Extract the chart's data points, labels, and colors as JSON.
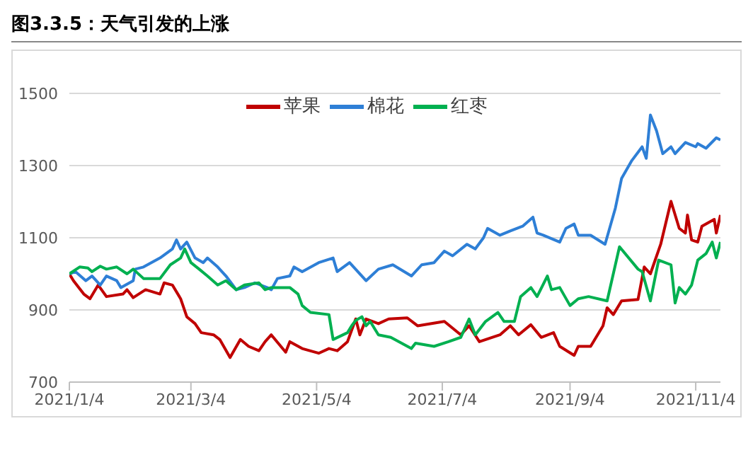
{
  "chart_data": {
    "type": "line",
    "title": "图3.3.5：天气引发的上涨",
    "legend": "top",
    "grid": "y",
    "ylim": [
      700,
      1500
    ],
    "yticks": [
      700,
      900,
      1100,
      1300,
      1500
    ],
    "xlim": [
      "2021-01-04",
      "2021-11-16"
    ],
    "xticks": [
      {
        "value": "2021-01-04",
        "label": "2021/1/4"
      },
      {
        "value": "2021-03-04",
        "label": "2021/3/4"
      },
      {
        "value": "2021-05-04",
        "label": "2021/5/4"
      },
      {
        "value": "2021-07-04",
        "label": "2021/7/4"
      },
      {
        "value": "2021-09-04",
        "label": "2021/9/4"
      },
      {
        "value": "2021-11-04",
        "label": "2021/11/4"
      }
    ],
    "series": [
      {
        "name": "苹果",
        "color": "#c00000",
        "x": [
          "2021-01-04",
          "2021-01-06",
          "2021-01-11",
          "2021-01-14",
          "2021-01-18",
          "2021-01-22",
          "2021-01-30",
          "2021-02-01",
          "2021-02-04",
          "2021-02-10",
          "2021-02-17",
          "2021-02-19",
          "2021-02-23",
          "2021-02-27",
          "2021-03-02",
          "2021-03-06",
          "2021-03-09",
          "2021-03-15",
          "2021-03-18",
          "2021-03-23",
          "2021-03-28",
          "2021-04-01",
          "2021-04-06",
          "2021-04-09",
          "2021-04-12",
          "2021-04-19",
          "2021-04-21",
          "2021-04-27",
          "2021-05-05",
          "2021-05-10",
          "2021-05-14",
          "2021-05-19",
          "2021-05-23",
          "2021-05-25",
          "2021-05-28",
          "2021-06-03",
          "2021-06-08",
          "2021-06-17",
          "2021-06-22",
          "2021-07-05",
          "2021-07-13",
          "2021-07-17",
          "2021-07-22",
          "2021-08-01",
          "2021-08-06",
          "2021-08-10",
          "2021-08-16",
          "2021-08-21",
          "2021-08-27",
          "2021-08-30",
          "2021-09-06",
          "2021-09-08",
          "2021-09-14",
          "2021-09-20",
          "2021-09-22",
          "2021-09-25",
          "2021-09-29",
          "2021-10-07",
          "2021-10-10",
          "2021-10-13",
          "2021-10-18",
          "2021-10-23",
          "2021-10-27",
          "2021-10-30",
          "2021-10-31",
          "2021-11-02",
          "2021-11-05",
          "2021-11-07",
          "2021-11-13",
          "2021-11-14",
          "2021-11-16"
        ],
        "values": [
          1000,
          981,
          944,
          931,
          969,
          937,
          944,
          956,
          934,
          956,
          944,
          975,
          969,
          931,
          881,
          862,
          837,
          831,
          818,
          768,
          818,
          799,
          787,
          812,
          831,
          783,
          812,
          793,
          780,
          793,
          787,
          812,
          875,
          831,
          875,
          862,
          875,
          878,
          856,
          868,
          831,
          856,
          812,
          831,
          856,
          831,
          859,
          824,
          837,
          799,
          774,
          799,
          799,
          856,
          906,
          887,
          925,
          929,
          1019,
          1000,
          1082,
          1201,
          1126,
          1113,
          1163,
          1094,
          1088,
          1132,
          1151,
          1113,
          1163
        ]
      },
      {
        "name": "棉花",
        "color": "#2e7fd6",
        "x": [
          "2021-01-04",
          "2021-01-07",
          "2021-01-12",
          "2021-01-15",
          "2021-01-19",
          "2021-01-22",
          "2021-01-27",
          "2021-01-29",
          "2021-02-04",
          "2021-02-05",
          "2021-02-09",
          "2021-02-17",
          "2021-02-23",
          "2021-02-25",
          "2021-02-27",
          "2021-03-02",
          "2021-03-06",
          "2021-03-10",
          "2021-03-12",
          "2021-03-17",
          "2021-03-21",
          "2021-03-26",
          "2021-03-30",
          "2021-04-04",
          "2021-04-10",
          "2021-04-12",
          "2021-04-15",
          "2021-04-21",
          "2021-04-23",
          "2021-04-27",
          "2021-05-05",
          "2021-05-12",
          "2021-05-14",
          "2021-05-20",
          "2021-05-24",
          "2021-05-28",
          "2021-06-03",
          "2021-06-10",
          "2021-06-19",
          "2021-06-24",
          "2021-06-30",
          "2021-07-05",
          "2021-07-09",
          "2021-07-16",
          "2021-07-20",
          "2021-07-24",
          "2021-07-26",
          "2021-08-01",
          "2021-08-06",
          "2021-08-12",
          "2021-08-17",
          "2021-08-19",
          "2021-08-22",
          "2021-08-30",
          "2021-09-02",
          "2021-09-06",
          "2021-09-08",
          "2021-09-14",
          "2021-09-21",
          "2021-09-26",
          "2021-09-29",
          "2021-10-04",
          "2021-10-09",
          "2021-10-11",
          "2021-10-13",
          "2021-10-16",
          "2021-10-19",
          "2021-10-23",
          "2021-10-25",
          "2021-10-30",
          "2021-11-04",
          "2021-11-05",
          "2021-11-09",
          "2021-11-14",
          "2021-11-16"
        ],
        "values": [
          1000,
          1006,
          981,
          994,
          969,
          994,
          981,
          962,
          981,
          1013,
          1019,
          1044,
          1069,
          1094,
          1069,
          1088,
          1044,
          1031,
          1044,
          1019,
          994,
          956,
          962,
          975,
          962,
          956,
          987,
          994,
          1019,
          1006,
          1031,
          1044,
          1006,
          1031,
          1006,
          981,
          1013,
          1025,
          994,
          1025,
          1031,
          1063,
          1050,
          1082,
          1069,
          1100,
          1126,
          1107,
          1119,
          1132,
          1157,
          1113,
          1107,
          1088,
          1126,
          1138,
          1107,
          1107,
          1082,
          1182,
          1264,
          1314,
          1352,
          1320,
          1440,
          1396,
          1333,
          1352,
          1333,
          1364,
          1352,
          1361,
          1348,
          1377,
          1371
        ]
      },
      {
        "name": "红枣",
        "color": "#00b050",
        "x": [
          "2021-01-04",
          "2021-01-09",
          "2021-01-13",
          "2021-01-15",
          "2021-01-19",
          "2021-01-22",
          "2021-01-27",
          "2021-02-01",
          "2021-02-04",
          "2021-02-09",
          "2021-02-17",
          "2021-02-22",
          "2021-02-27",
          "2021-03-01",
          "2021-03-04",
          "2021-03-08",
          "2021-03-12",
          "2021-03-17",
          "2021-03-21",
          "2021-03-26",
          "2021-03-30",
          "2021-04-06",
          "2021-04-09",
          "2021-04-12",
          "2021-04-21",
          "2021-04-25",
          "2021-04-27",
          "2021-05-01",
          "2021-05-10",
          "2021-05-12",
          "2021-05-19",
          "2021-05-21",
          "2021-05-23",
          "2021-05-26",
          "2021-05-28",
          "2021-05-30",
          "2021-06-03",
          "2021-06-09",
          "2021-06-19",
          "2021-06-21",
          "2021-06-30",
          "2021-07-07",
          "2021-07-13",
          "2021-07-17",
          "2021-07-20",
          "2021-07-25",
          "2021-07-31",
          "2021-08-03",
          "2021-08-08",
          "2021-08-11",
          "2021-08-16",
          "2021-08-19",
          "2021-08-24",
          "2021-08-26",
          "2021-08-30",
          "2021-09-04",
          "2021-09-08",
          "2021-09-13",
          "2021-09-22",
          "2021-09-28",
          "2021-10-07",
          "2021-10-09",
          "2021-10-13",
          "2021-10-17",
          "2021-10-23",
          "2021-10-25",
          "2021-10-27",
          "2021-10-30",
          "2021-11-02",
          "2021-11-05",
          "2021-11-09",
          "2021-11-12",
          "2021-11-14",
          "2021-11-16"
        ],
        "values": [
          1000,
          1019,
          1016,
          1006,
          1021,
          1013,
          1019,
          1000,
          1013,
          987,
          987,
          1025,
          1044,
          1069,
          1031,
          1013,
          994,
          969,
          981,
          956,
          969,
          975,
          956,
          962,
          962,
          944,
          912,
          893,
          887,
          818,
          837,
          856,
          871,
          881,
          856,
          868,
          831,
          824,
          793,
          808,
          799,
          812,
          824,
          875,
          831,
          868,
          893,
          868,
          868,
          937,
          962,
          937,
          994,
          956,
          962,
          912,
          931,
          937,
          925,
          1075,
          1013,
          1006,
          925,
          1038,
          1025,
          919,
          962,
          944,
          969,
          1038,
          1056,
          1088,
          1044,
          1088
        ]
      }
    ]
  }
}
